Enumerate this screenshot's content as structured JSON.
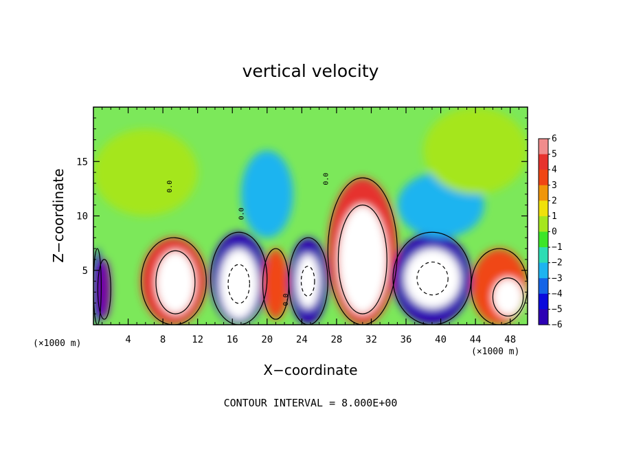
{
  "chart_data": {
    "type": "heatmap",
    "title": "vertical velocity",
    "xlabel": "X−coordinate",
    "ylabel": "Z−coordinate",
    "x_unit_left": "(×1000 m)",
    "x_unit_right": "(×1000 m)",
    "xlim": [
      0,
      50
    ],
    "ylim": [
      0,
      20
    ],
    "x_ticks": [
      4,
      8,
      12,
      16,
      20,
      24,
      28,
      32,
      36,
      40,
      44,
      48
    ],
    "x_tick_labels": [
      "4",
      "8",
      "12",
      "16",
      "20",
      "24",
      "28",
      "32",
      "36",
      "40",
      "44",
      "48"
    ],
    "y_ticks": [
      5,
      10,
      15
    ],
    "y_tick_labels": [
      "5",
      "10",
      "15"
    ],
    "colorbar": {
      "levels": [
        6,
        5,
        4,
        3,
        2,
        1,
        0,
        -1,
        -2,
        -3,
        -4,
        -5,
        -6
      ],
      "labels": [
        "6",
        "5",
        "4",
        "3",
        "2",
        "1",
        "0",
        "−1",
        "−2",
        "−3",
        "−4",
        "−5",
        "−6"
      ],
      "colors": [
        "#f08c8c",
        "#e6322d",
        "#f04614",
        "#f0960a",
        "#f0e10a",
        "#a5e61e",
        "#3ce628",
        "#2ddcb4",
        "#1eb4f0",
        "#1464e6",
        "#0a0adc",
        "#2d00b4",
        "#7800a0"
      ]
    },
    "background_color": "#7ce85a",
    "footer": "CONTOUR INTERVAL =  8.000E+00",
    "contour_labels": [
      {
        "text": "0.0",
        "x": 17.3,
        "y": 10.2,
        "rotate": -90
      },
      {
        "text": "0.0",
        "x": 27.0,
        "y": 13.4,
        "rotate": -90
      },
      {
        "text": "0.0",
        "x": 22.4,
        "y": 2.3,
        "rotate": -90
      },
      {
        "text": "0.0",
        "x": 9.0,
        "y": 12.7,
        "rotate": -90
      }
    ],
    "cells": [
      {
        "x": 0.0,
        "w": 0.9,
        "z": 0.0,
        "h": 7.0,
        "v": -4,
        "shape": "updown"
      },
      {
        "x": 0.5,
        "w": 1.5,
        "z": 0.5,
        "h": 5.5,
        "v": -6,
        "shape": "ellipse"
      },
      {
        "x": 5.5,
        "w": 7.5,
        "z": 0.0,
        "h": 8.0,
        "v": 5,
        "shape": "ellipse"
      },
      {
        "x": 7.2,
        "w": 4.5,
        "z": 1.0,
        "h": 5.8,
        "v": 7,
        "shape": "ellipse"
      },
      {
        "x": 13.5,
        "w": 6.5,
        "z": 0.0,
        "h": 8.5,
        "v": -5,
        "shape": "ellipse"
      },
      {
        "x": 14.5,
        "w": 4.5,
        "z": 0.5,
        "h": 6.5,
        "v": -7,
        "shape": "ellipse"
      },
      {
        "x": 19.5,
        "w": 3.0,
        "z": 0.5,
        "h": 6.5,
        "v": 4,
        "shape": "ellipse"
      },
      {
        "x": 22.5,
        "w": 4.5,
        "z": 0.0,
        "h": 8.0,
        "v": -5,
        "shape": "ellipse"
      },
      {
        "x": 23.3,
        "w": 2.8,
        "z": 1.5,
        "h": 5.0,
        "v": -7,
        "shape": "ellipse"
      },
      {
        "x": 27.0,
        "w": 8.0,
        "z": 0.0,
        "h": 13.5,
        "v": 5,
        "shape": "ellipse"
      },
      {
        "x": 28.2,
        "w": 5.6,
        "z": 1.0,
        "h": 10.0,
        "v": 7,
        "shape": "ellipse"
      },
      {
        "x": 34.5,
        "w": 9.0,
        "z": 0.0,
        "h": 8.5,
        "v": -5,
        "shape": "ellipse"
      },
      {
        "x": 35.8,
        "w": 6.5,
        "z": 1.5,
        "h": 5.5,
        "v": -7,
        "shape": "ellipse"
      },
      {
        "x": 43.5,
        "w": 6.5,
        "z": 0.0,
        "h": 7.0,
        "v": 4,
        "shape": "ellipse"
      },
      {
        "x": 46.0,
        "w": 3.5,
        "z": 0.8,
        "h": 3.5,
        "v": 7,
        "shape": "ellipse"
      },
      {
        "x": 17.0,
        "w": 6.0,
        "z": 8.0,
        "h": 8.0,
        "v": -2,
        "shape": "ellipse"
      },
      {
        "x": 35.0,
        "w": 10.0,
        "z": 8.0,
        "h": 6.0,
        "v": -2,
        "shape": "ellipse"
      },
      {
        "x": 0.0,
        "w": 12.0,
        "z": 10.0,
        "h": 8.0,
        "v": 1,
        "shape": "ellipse"
      },
      {
        "x": 38.0,
        "w": 12.0,
        "z": 12.0,
        "h": 8.0,
        "v": 1,
        "shape": "ellipse"
      }
    ]
  }
}
